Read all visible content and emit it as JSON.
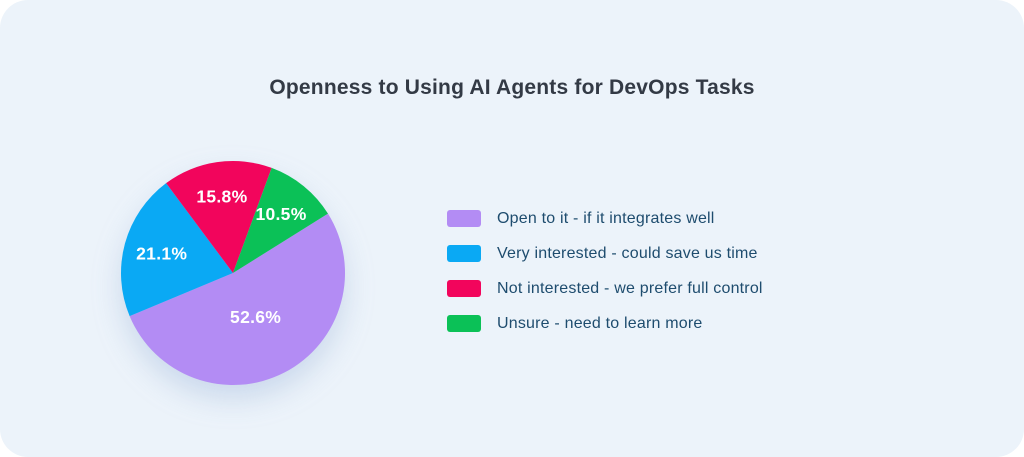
{
  "card": {
    "background_color": "#ecf3fa",
    "page_background_color": "#ffffff"
  },
  "chart_data": {
    "type": "pie",
    "title": "Openness to Using AI Agents for DevOps Tasks",
    "start_angle_deg": 58,
    "direction": "clockwise",
    "legend_position": "right",
    "title_color": "#333a45",
    "legend_text_color": "#1e4c6e",
    "percent_label_color": "#ffffff",
    "slices": [
      {
        "label": "Open to it - if it integrates well",
        "value": 52.6,
        "pct_label": "52.6%",
        "color": "#b38cf4",
        "label_radius": 0.44
      },
      {
        "label": "Very interested - could save us time",
        "value": 21.1,
        "pct_label": "21.1%",
        "color": "#0aa9f4",
        "label_radius": 0.66
      },
      {
        "label": "Not interested - we prefer full control",
        "value": 15.8,
        "pct_label": "15.8%",
        "color": "#f2055c",
        "label_radius": 0.69
      },
      {
        "label": "Unsure - need to learn more",
        "value": 10.5,
        "pct_label": "10.5%",
        "color": "#0bc157",
        "label_radius": 0.68
      }
    ]
  }
}
